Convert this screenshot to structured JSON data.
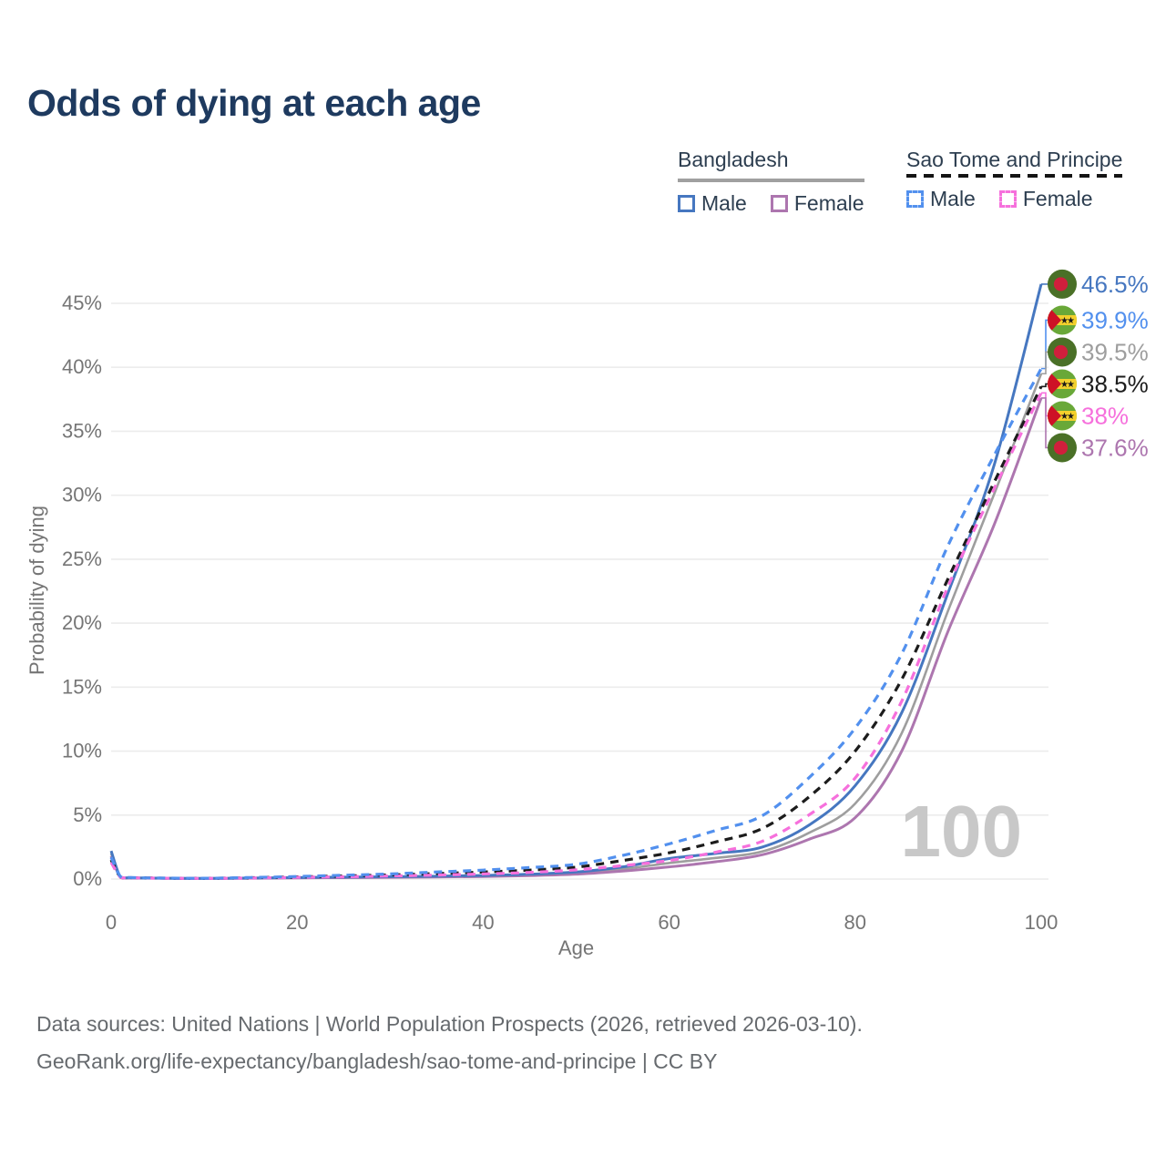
{
  "title": "Odds of dying at each age",
  "legend": {
    "groups": [
      {
        "country": "Bangladesh",
        "line_style": "solid",
        "underline_color": "#a0a0a0",
        "items": [
          {
            "label": "Male",
            "color": "#4677c0",
            "dashed": false
          },
          {
            "label": "Female",
            "color": "#ad76af",
            "dashed": false
          }
        ]
      },
      {
        "country": "Sao Tome and Principe",
        "line_style": "dashed",
        "underline_color": "#141414",
        "items": [
          {
            "label": "Male",
            "color": "#5290ee",
            "dashed": true
          },
          {
            "label": "Female",
            "color": "#f670dc",
            "dashed": true
          }
        ]
      }
    ]
  },
  "watermark": "100",
  "footer": {
    "line1": "Data sources: United Nations | World Population Prospects (2026, retrieved 2026-03-10).",
    "line2": "GeoRank.org/life-expectancy/bangladesh/sao-tome-and-principe | CC BY"
  },
  "chart_data": {
    "type": "line",
    "title": "Odds of dying at each age",
    "xlabel": "Age",
    "ylabel": "Probability of dying",
    "xlim": [
      0,
      100
    ],
    "ylim": [
      0,
      45
    ],
    "x_ticks": [
      0,
      20,
      40,
      60,
      80,
      100
    ],
    "y_ticks": [
      "0%",
      "5%",
      "10%",
      "15%",
      "20%",
      "25%",
      "30%",
      "35%",
      "40%",
      "45%"
    ],
    "grid": true,
    "legend_position": "top-right",
    "unit": "percent",
    "ages": [
      0,
      1,
      2,
      5,
      10,
      15,
      20,
      25,
      30,
      35,
      40,
      45,
      50,
      55,
      60,
      65,
      70,
      75,
      80,
      85,
      90,
      95,
      100
    ],
    "series": [
      {
        "id": "bd-both",
        "name": "Bangladesh Both sexes",
        "country": "Bangladesh",
        "sex": "both",
        "flag": "bd",
        "color": "#9e9e9e",
        "dashed": false,
        "width": 2.6,
        "end_label": "39.5%",
        "values": [
          2.0,
          0.14,
          0.09,
          0.065,
          0.045,
          0.07,
          0.1,
          0.13,
          0.155,
          0.19,
          0.24,
          0.32,
          0.46,
          0.78,
          1.25,
          1.65,
          2.15,
          3.6,
          5.9,
          11.4,
          21.0,
          30.2,
          39.5
        ]
      },
      {
        "id": "bd-female",
        "name": "Bangladesh Female",
        "country": "Bangladesh",
        "sex": "female",
        "flag": "bd",
        "color": "#ad76af",
        "dashed": false,
        "width": 3,
        "end_label": "37.6%",
        "values": [
          1.8,
          0.12,
          0.08,
          0.06,
          0.04,
          0.06,
          0.09,
          0.11,
          0.13,
          0.16,
          0.2,
          0.27,
          0.38,
          0.62,
          0.95,
          1.35,
          1.9,
          3.1,
          4.8,
          10.0,
          19.4,
          27.8,
          37.6
        ]
      },
      {
        "id": "bd-male",
        "name": "Bangladesh Male",
        "country": "Bangladesh",
        "sex": "male",
        "flag": "bd",
        "color": "#4677c0",
        "dashed": false,
        "width": 3,
        "end_label": "46.5%",
        "values": [
          2.2,
          0.15,
          0.1,
          0.07,
          0.05,
          0.08,
          0.12,
          0.15,
          0.18,
          0.22,
          0.28,
          0.38,
          0.55,
          0.95,
          1.6,
          2.0,
          2.5,
          4.2,
          7.3,
          13.0,
          22.4,
          32.5,
          46.5
        ]
      },
      {
        "id": "st-both",
        "name": "Sao Tome and Principe Both sexes",
        "country": "Sao Tome and Principe",
        "sex": "both",
        "flag": "st",
        "color": "#1c1c1c",
        "dashed": true,
        "width": 3.2,
        "end_label": "38.5%",
        "values": [
          1.5,
          0.17,
          0.11,
          0.075,
          0.055,
          0.1,
          0.16,
          0.24,
          0.32,
          0.43,
          0.55,
          0.7,
          0.93,
          1.45,
          2.05,
          2.9,
          3.95,
          6.4,
          10.0,
          15.6,
          23.5,
          31.1,
          38.5
        ]
      },
      {
        "id": "st-female",
        "name": "Sao Tome and Principe Female",
        "country": "Sao Tome and Principe",
        "sex": "female",
        "flag": "st",
        "color": "#f670dc",
        "dashed": true,
        "width": 3.2,
        "end_label": "38%",
        "values": [
          1.3,
          0.15,
          0.1,
          0.07,
          0.05,
          0.08,
          0.13,
          0.18,
          0.24,
          0.31,
          0.4,
          0.52,
          0.72,
          1.05,
          1.45,
          2.1,
          2.95,
          5.0,
          7.9,
          13.9,
          22.9,
          30.6,
          38.0
        ]
      },
      {
        "id": "st-male",
        "name": "Sao Tome and Principe Male",
        "country": "Sao Tome and Principe",
        "sex": "male",
        "flag": "st",
        "color": "#5290ee",
        "dashed": true,
        "width": 3.2,
        "end_label": "39.9%",
        "values": [
          1.7,
          0.2,
          0.12,
          0.08,
          0.06,
          0.12,
          0.2,
          0.3,
          0.4,
          0.55,
          0.7,
          0.9,
          1.15,
          1.85,
          2.75,
          3.8,
          4.95,
          7.9,
          11.8,
          17.6,
          26.1,
          33.2,
          39.9
        ]
      }
    ]
  }
}
